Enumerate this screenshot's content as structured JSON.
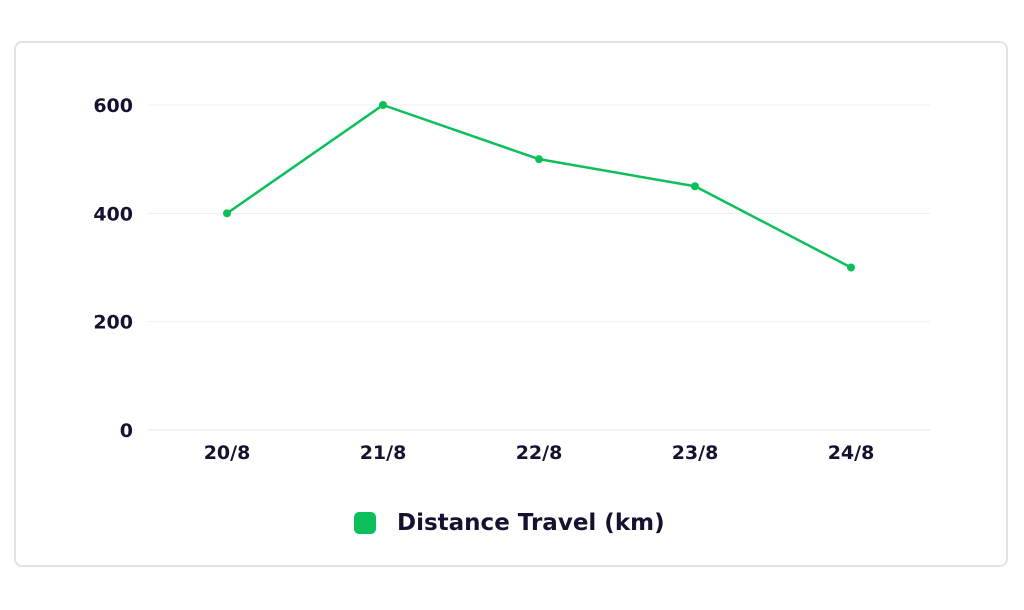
{
  "chart_data": {
    "type": "line",
    "categories": [
      "20/8",
      "21/8",
      "22/8",
      "23/8",
      "24/8"
    ],
    "series": [
      {
        "name": "Distance Travel (km)",
        "values": [
          400,
          600,
          500,
          450,
          300
        ],
        "color": "#0dbf5b"
      }
    ],
    "ylim": [
      0,
      600
    ],
    "yticks": [
      0,
      200,
      400,
      600
    ],
    "grid": true,
    "legend_position": "bottom",
    "title": "",
    "xlabel": "",
    "ylabel": ""
  }
}
